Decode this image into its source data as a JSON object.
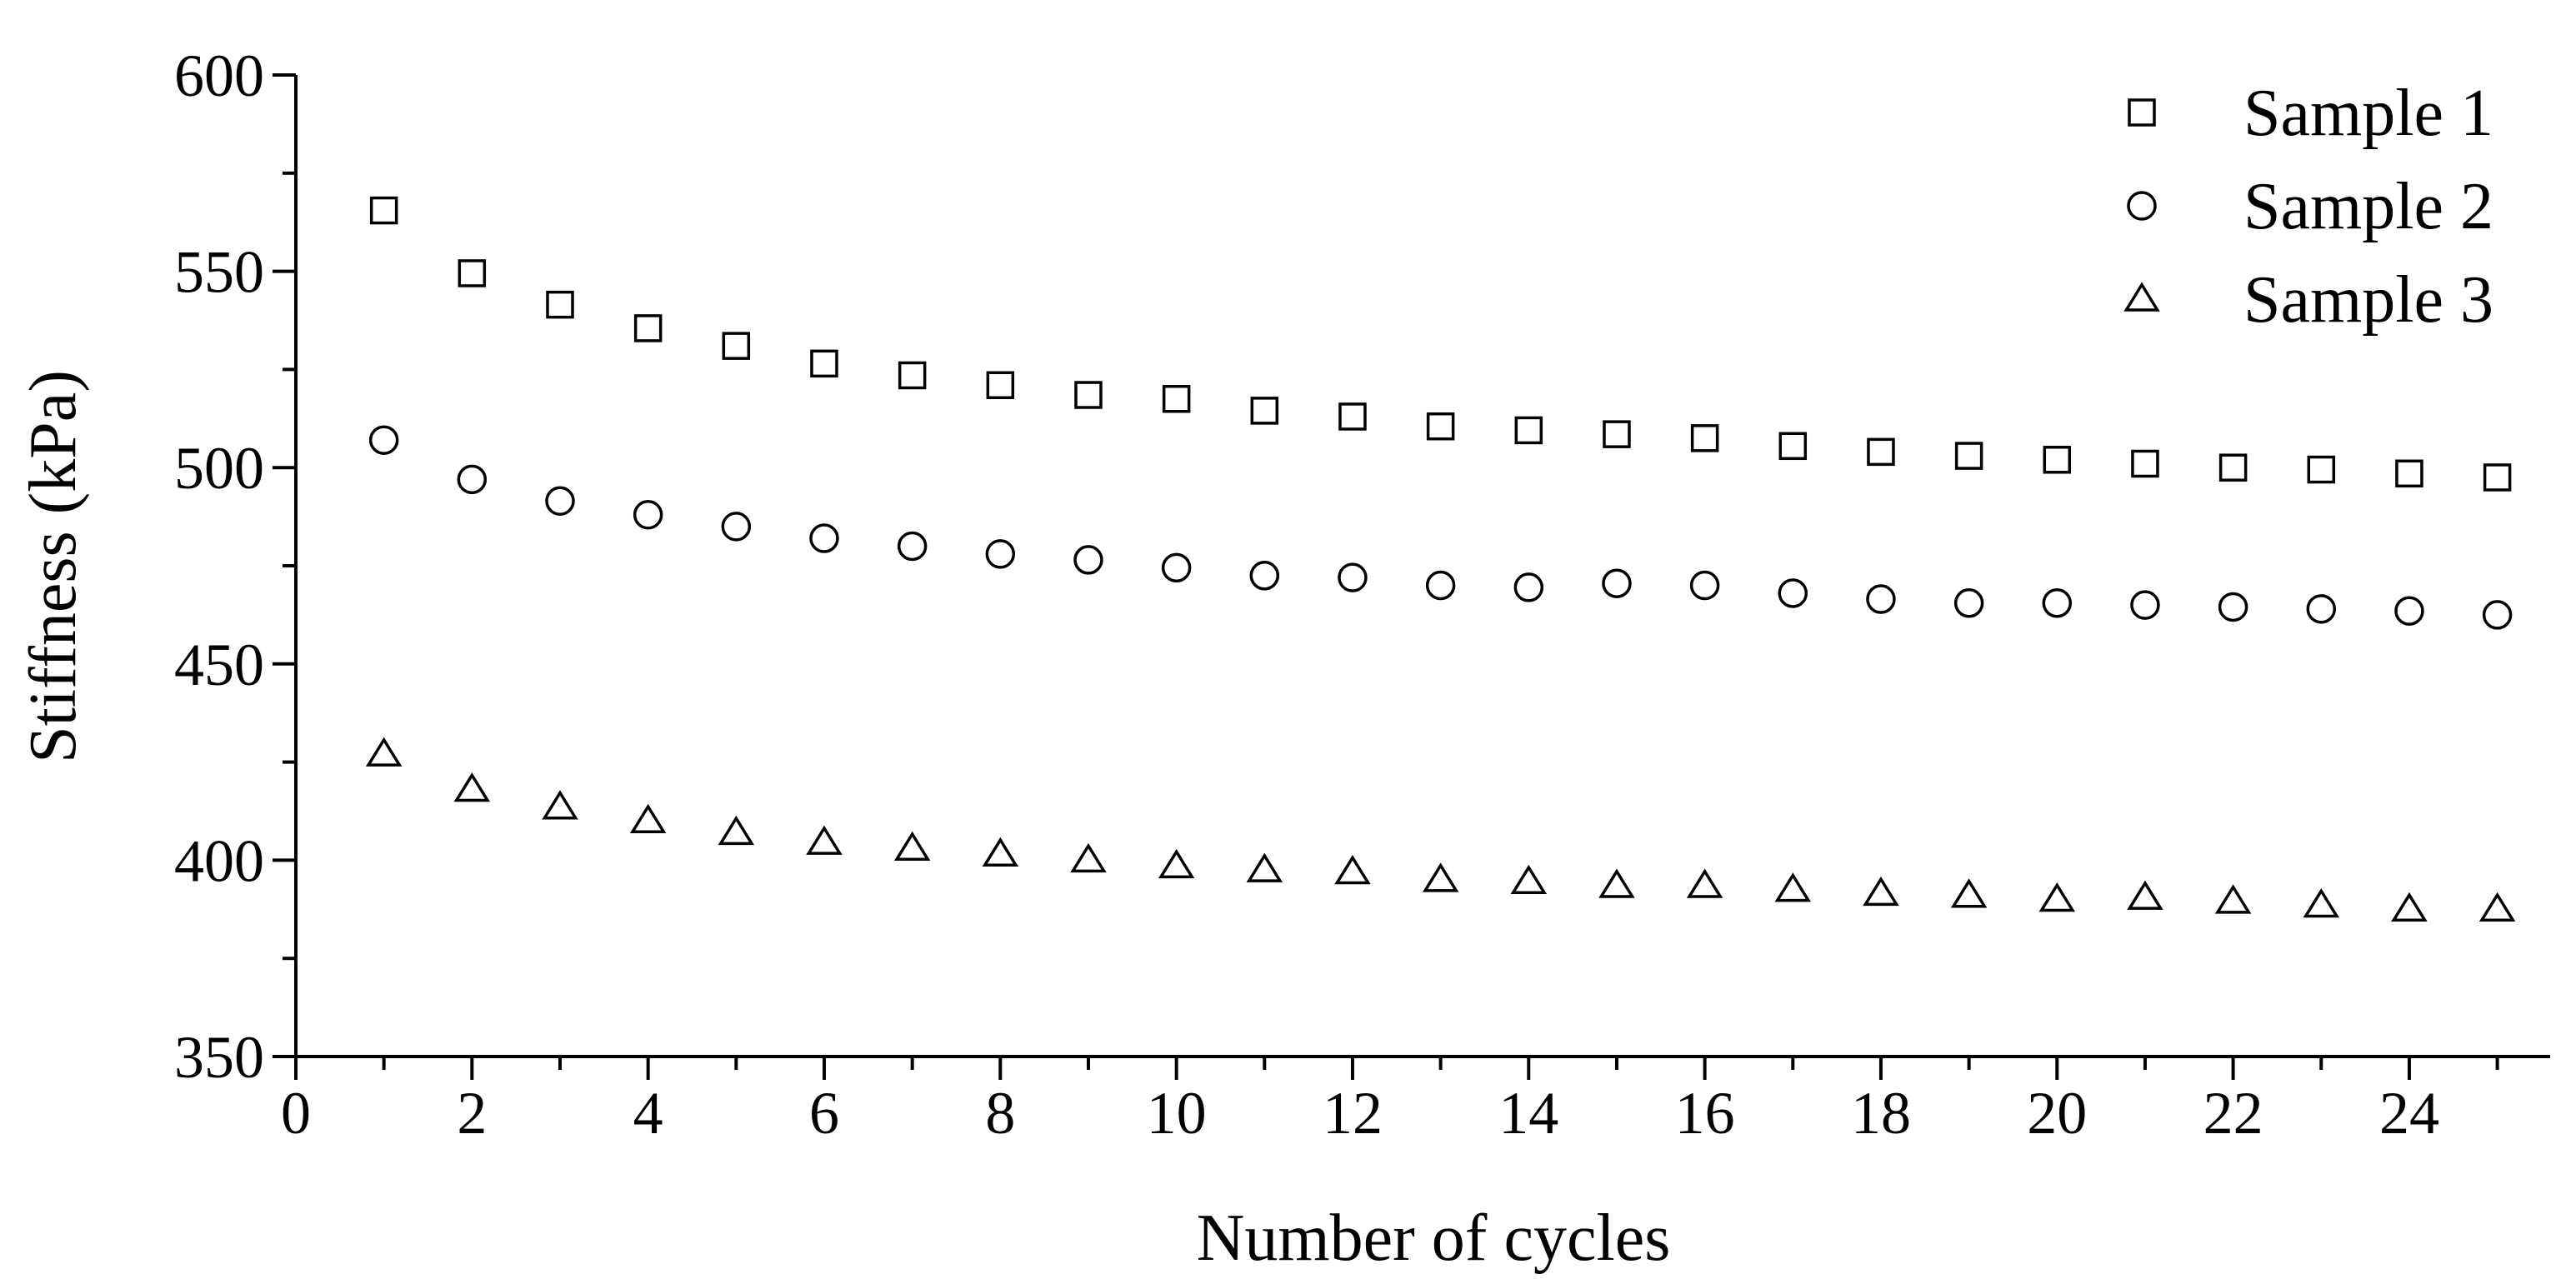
{
  "chart_data": {
    "type": "scatter",
    "title": "",
    "xlabel": "Number of cycles",
    "ylabel": "Stiffness (kPa)",
    "xlim": [
      0,
      25.6
    ],
    "ylim": [
      350,
      600
    ],
    "xticks": [
      0,
      2,
      4,
      6,
      8,
      10,
      12,
      14,
      16,
      18,
      20,
      22,
      24
    ],
    "yticks": [
      350,
      400,
      450,
      500,
      550,
      600
    ],
    "grid": false,
    "legend_position": "top-right",
    "x": [
      1,
      2,
      3,
      4,
      5,
      6,
      7,
      8,
      9,
      10,
      11,
      12,
      13,
      14,
      15,
      16,
      17,
      18,
      19,
      20,
      21,
      22,
      23,
      24,
      25
    ],
    "series": [
      {
        "name": "Sample 1",
        "marker": "square",
        "values": [
          565.5,
          549.5,
          541.5,
          535.5,
          531,
          526.5,
          523.5,
          521,
          518.5,
          517.5,
          514.5,
          513,
          510.5,
          509.5,
          508.5,
          507.5,
          505.5,
          504,
          503,
          502,
          501,
          500,
          499.5,
          498.5,
          497.5
        ]
      },
      {
        "name": "Sample 2",
        "marker": "circle",
        "values": [
          507,
          497,
          491.5,
          488,
          485,
          482,
          480,
          478,
          476.5,
          474.5,
          472.5,
          472,
          470,
          469.5,
          470.5,
          470,
          468,
          466.5,
          465.5,
          465.5,
          465,
          464.5,
          464,
          463.5,
          462.5
        ]
      },
      {
        "name": "Sample 3",
        "marker": "triangle",
        "values": [
          427,
          418,
          413.5,
          410,
          407,
          404.5,
          403,
          401.5,
          400,
          398.5,
          397.5,
          397,
          395,
          394.5,
          393.5,
          393.5,
          392.5,
          391.5,
          391,
          390,
          390.5,
          389.5,
          388.5,
          387.5,
          387.5
        ]
      }
    ]
  }
}
